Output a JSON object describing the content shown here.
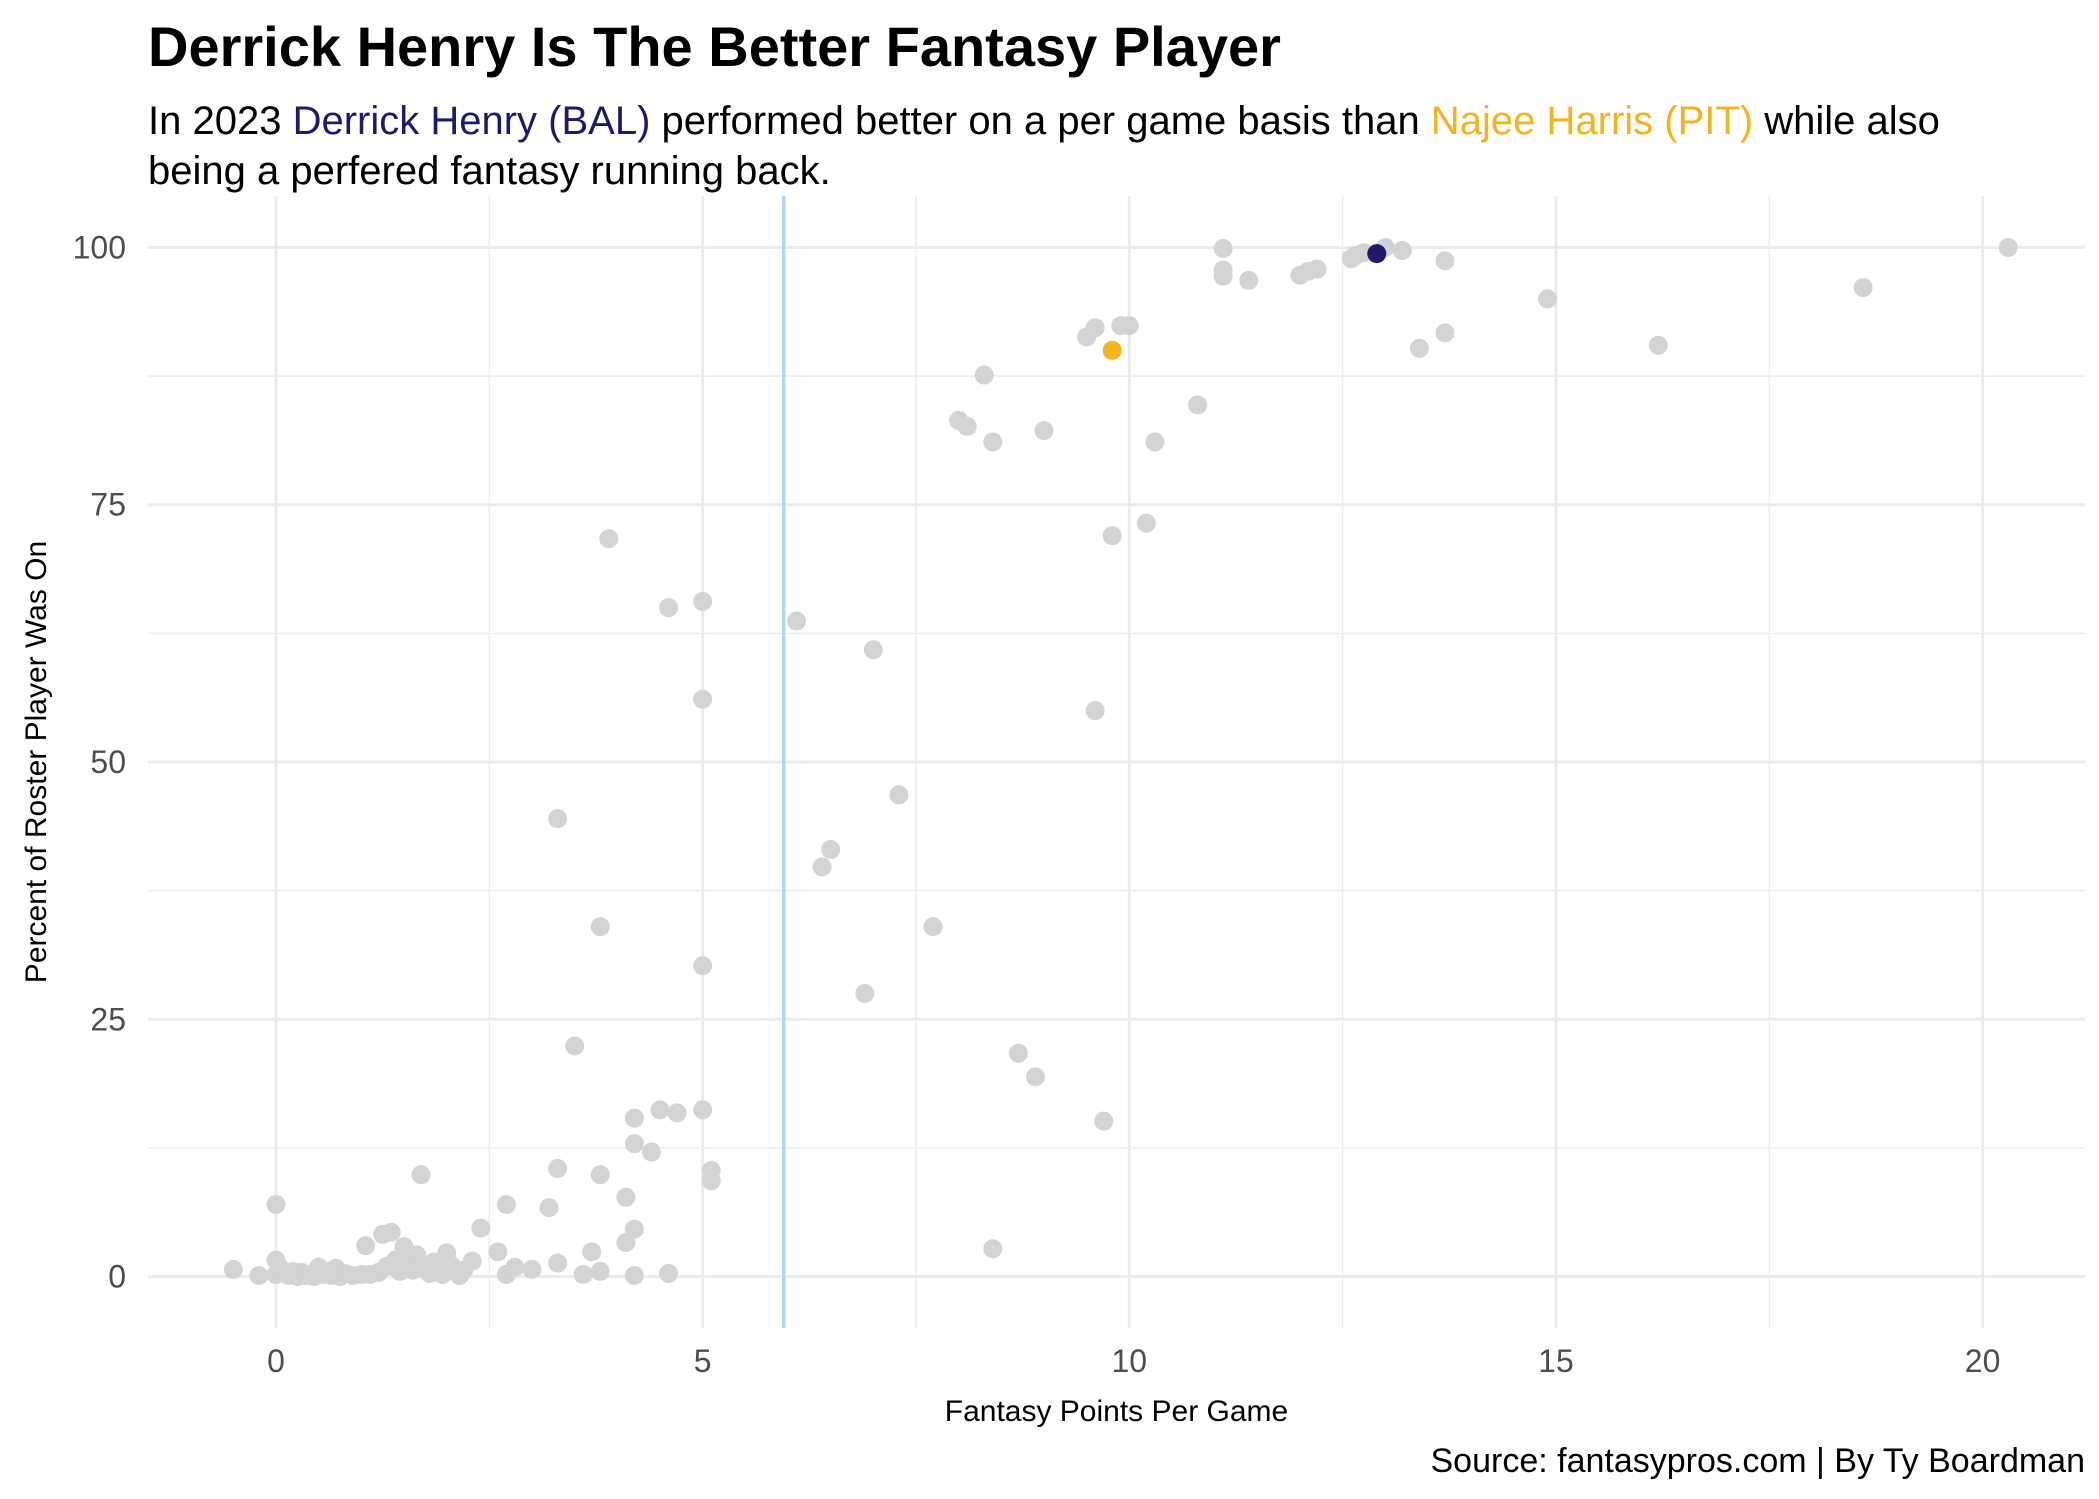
{
  "chart_data": {
    "type": "scatter",
    "title": "Derrick Henry Is The Better Fantasy Player",
    "subtitle": {
      "pre": "In 2023 ",
      "player1": "Derrick Henry (BAL)",
      "mid": " performed better on a per game basis than ",
      "player2": "Najee Harris (PIT)",
      "post": " while also being a perfered fantasy running back."
    },
    "caption": "Source: fantasypros.com | By Ty Boardman",
    "xlabel": "Fantasy Points Per Game",
    "ylabel": "Percent of Roster Player Was On",
    "xlim": [
      -1.5,
      21.2
    ],
    "ylim": [
      -5,
      105
    ],
    "x_ticks": [
      0,
      5,
      10,
      15,
      20
    ],
    "y_ticks": [
      0,
      25,
      50,
      75,
      100
    ],
    "grid": true,
    "reference_line_x": 5.95,
    "colors": {
      "point": "#d3d3d3",
      "henry": "#20196b",
      "harris": "#f4b21d",
      "reference_line": "#add8e6",
      "grid": "#ebebeb"
    },
    "highlight": {
      "henry": {
        "x": 12.9,
        "y": 99.4
      },
      "harris": {
        "x": 9.8,
        "y": 90.0
      }
    },
    "points": [
      [
        -0.5,
        0.7
      ],
      [
        -0.2,
        0.1
      ],
      [
        0,
        7.0
      ],
      [
        0,
        1.6
      ],
      [
        0,
        0.2
      ],
      [
        0.05,
        0.8
      ],
      [
        0.1,
        0.3
      ],
      [
        0.15,
        0.1
      ],
      [
        0.2,
        0.5
      ],
      [
        0.25,
        0.0
      ],
      [
        0.3,
        0.4
      ],
      [
        0.35,
        0.1
      ],
      [
        0.4,
        0.2
      ],
      [
        0.45,
        0.0
      ],
      [
        0.5,
        0.9
      ],
      [
        0.55,
        0.2
      ],
      [
        0.6,
        0.5
      ],
      [
        0.65,
        0.1
      ],
      [
        0.7,
        0.8
      ],
      [
        0.75,
        0.0
      ],
      [
        0.8,
        0.3
      ],
      [
        0.9,
        0.1
      ],
      [
        1.0,
        0.2
      ],
      [
        1.05,
        3.0
      ],
      [
        1.1,
        0.2
      ],
      [
        1.2,
        0.4
      ],
      [
        1.25,
        4.1
      ],
      [
        1.3,
        1.0
      ],
      [
        1.35,
        4.3
      ],
      [
        1.4,
        1.6
      ],
      [
        1.45,
        0.5
      ],
      [
        1.5,
        2.9
      ],
      [
        1.55,
        1.1
      ],
      [
        1.6,
        0.6
      ],
      [
        1.65,
        2.1
      ],
      [
        1.7,
        9.9
      ],
      [
        1.75,
        0.9
      ],
      [
        1.8,
        0.3
      ],
      [
        1.85,
        1.4
      ],
      [
        1.9,
        0.6
      ],
      [
        1.95,
        0.2
      ],
      [
        2.0,
        2.3
      ],
      [
        2.05,
        1.1
      ],
      [
        2.1,
        0.5
      ],
      [
        2.15,
        0.1
      ],
      [
        2.2,
        0.6
      ],
      [
        2.3,
        1.5
      ],
      [
        2.4,
        4.7
      ],
      [
        2.6,
        2.4
      ],
      [
        2.7,
        7.0
      ],
      [
        2.7,
        0.2
      ],
      [
        2.8,
        0.9
      ],
      [
        3.0,
        0.7
      ],
      [
        3.2,
        6.7
      ],
      [
        3.3,
        44.5
      ],
      [
        3.3,
        10.5
      ],
      [
        3.3,
        1.3
      ],
      [
        3.5,
        22.4
      ],
      [
        3.6,
        0.2
      ],
      [
        3.7,
        2.4
      ],
      [
        3.8,
        34.0
      ],
      [
        3.8,
        9.9
      ],
      [
        3.8,
        0.5
      ],
      [
        3.9,
        71.7
      ],
      [
        4.1,
        7.7
      ],
      [
        4.1,
        3.3
      ],
      [
        4.2,
        15.4
      ],
      [
        4.2,
        12.9
      ],
      [
        4.2,
        4.6
      ],
      [
        4.2,
        0.1
      ],
      [
        4.4,
        12.1
      ],
      [
        4.5,
        16.2
      ],
      [
        4.6,
        65.0
      ],
      [
        4.6,
        0.3
      ],
      [
        4.7,
        15.9
      ],
      [
        5.0,
        65.6
      ],
      [
        5.0,
        56.1
      ],
      [
        5.0,
        30.2
      ],
      [
        5.0,
        16.2
      ],
      [
        5.1,
        10.3
      ],
      [
        5.1,
        9.3
      ],
      [
        6.1,
        63.7
      ],
      [
        6.4,
        39.8
      ],
      [
        6.5,
        41.5
      ],
      [
        6.9,
        27.5
      ],
      [
        7.0,
        60.9
      ],
      [
        7.3,
        46.8
      ],
      [
        7.7,
        34.0
      ],
      [
        8.0,
        83.2
      ],
      [
        8.1,
        82.6
      ],
      [
        8.3,
        87.6
      ],
      [
        8.4,
        81.1
      ],
      [
        8.4,
        2.7
      ],
      [
        8.7,
        21.7
      ],
      [
        8.9,
        19.4
      ],
      [
        9.0,
        82.2
      ],
      [
        9.5,
        91.3
      ],
      [
        9.6,
        92.2
      ],
      [
        9.6,
        55.0
      ],
      [
        9.7,
        15.1
      ],
      [
        9.8,
        72.0
      ],
      [
        9.9,
        92.4
      ],
      [
        10.0,
        92.4
      ],
      [
        10.2,
        73.2
      ],
      [
        10.3,
        81.1
      ],
      [
        10.8,
        84.7
      ],
      [
        11.1,
        99.9
      ],
      [
        11.1,
        97.8
      ],
      [
        11.1,
        97.2
      ],
      [
        11.4,
        96.8
      ],
      [
        12.0,
        97.3
      ],
      [
        12.1,
        97.7
      ],
      [
        12.2,
        97.9
      ],
      [
        12.6,
        98.9
      ],
      [
        12.65,
        99.2
      ],
      [
        12.75,
        99.5
      ],
      [
        13.0,
        100.0
      ],
      [
        13.2,
        99.7
      ],
      [
        13.4,
        90.2
      ],
      [
        13.7,
        98.7
      ],
      [
        13.7,
        91.7
      ],
      [
        14.9,
        95.0
      ],
      [
        16.2,
        90.5
      ],
      [
        18.6,
        96.1
      ],
      [
        20.3,
        100.0
      ]
    ]
  }
}
